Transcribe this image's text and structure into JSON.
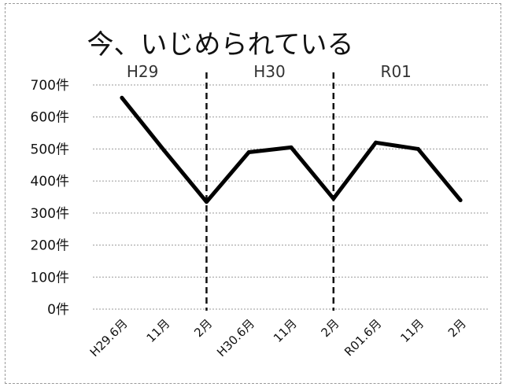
{
  "chart_data": {
    "type": "line",
    "title": "今、いじめられている",
    "categories": [
      "H29.6月",
      "11月",
      "2月",
      "H30.6月",
      "11月",
      "2月",
      "R01.6月",
      "11月",
      "2月"
    ],
    "series": [
      {
        "values": [
          660,
          495,
          335,
          490,
          505,
          345,
          520,
          500,
          340
        ]
      }
    ],
    "ylim": [
      0,
      700
    ],
    "y_ticks": [
      "0件",
      "100件",
      "200件",
      "300件",
      "400件",
      "500件",
      "600件",
      "700件"
    ],
    "periods": [
      "H29",
      "H30",
      "R01"
    ],
    "grid": true,
    "colors": {
      "line": "#000000",
      "grid": "#9a9a9a",
      "divider": "#111111"
    }
  }
}
